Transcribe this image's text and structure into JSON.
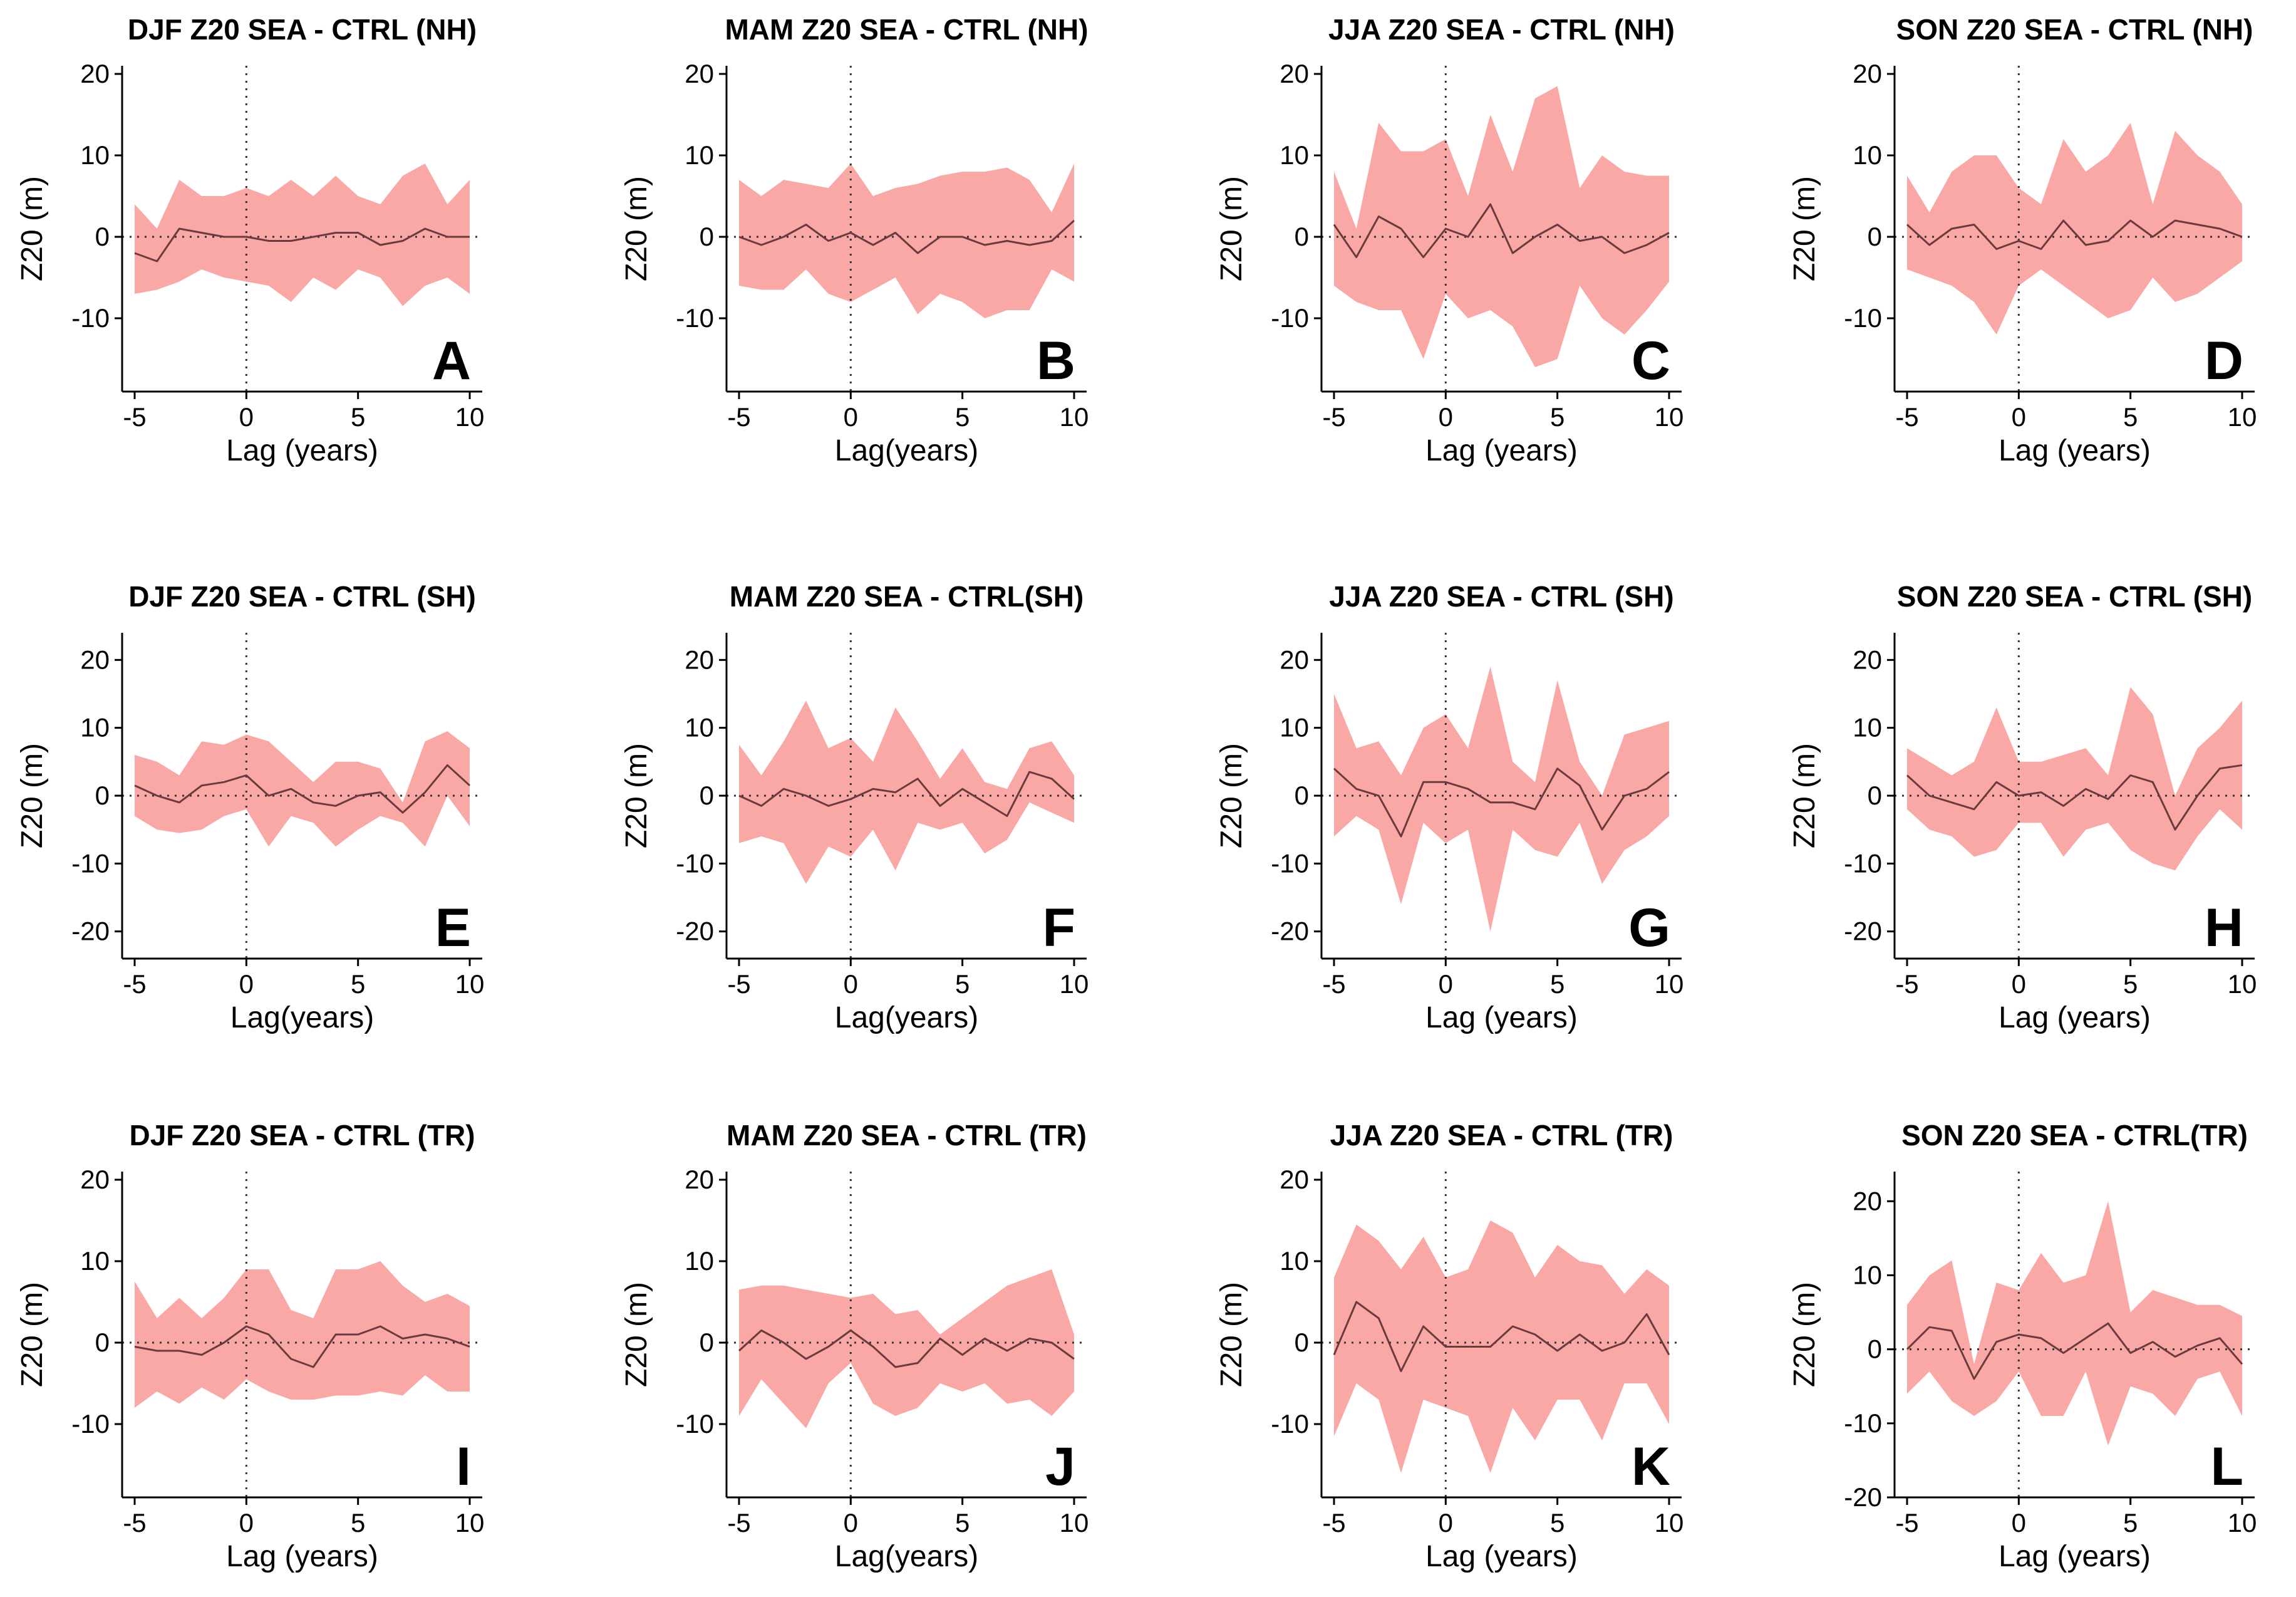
{
  "figure": {
    "description_colors": {
      "band": "#f9a8a5",
      "line": "#6b3a3e",
      "reference": "#333333"
    }
  },
  "chart_data": [
    {
      "type": "area",
      "letter": "A",
      "title": "DJF Z20 SEA - CTRL (NH)",
      "xlabel": "Lag (years)",
      "ylabel": "Z20 (m)",
      "xlim": [
        -5,
        10
      ],
      "ylim": [
        -19,
        21
      ],
      "xticks": [
        -5,
        0,
        5,
        10
      ],
      "yticks": [
        -10,
        0,
        10,
        20
      ],
      "x": [
        -5,
        -4,
        -3,
        -2,
        -1,
        0,
        1,
        2,
        3,
        4,
        5,
        6,
        7,
        8,
        9,
        10
      ],
      "mean": [
        -2,
        -3,
        1,
        0.5,
        0,
        0,
        -0.5,
        -0.5,
        0,
        0.5,
        0.5,
        -1,
        -0.5,
        1,
        0,
        0
      ],
      "upper": [
        4,
        1,
        7,
        5,
        5,
        6,
        5,
        7,
        5,
        7.5,
        5,
        4,
        7.5,
        9,
        4,
        7
      ],
      "lower": [
        -7,
        -6.5,
        -5.5,
        -4,
        -5,
        -5.5,
        -6,
        -8,
        -5,
        -6.5,
        -4,
        -5,
        -8.5,
        -6,
        -5,
        -7
      ]
    },
    {
      "type": "area",
      "letter": "B",
      "title": "MAM Z20 SEA - CTRL (NH)",
      "xlabel": "Lag(years)",
      "ylabel": "Z20 (m)",
      "xlim": [
        -5,
        10
      ],
      "ylim": [
        -19,
        21
      ],
      "xticks": [
        -5,
        0,
        5,
        10
      ],
      "yticks": [
        -10,
        0,
        10,
        20
      ],
      "x": [
        -5,
        -4,
        -3,
        -2,
        -1,
        0,
        1,
        2,
        3,
        4,
        5,
        6,
        7,
        8,
        9,
        10
      ],
      "mean": [
        0,
        -1,
        0,
        1.5,
        -0.5,
        0.5,
        -1,
        0.5,
        -2,
        0,
        0,
        -1,
        -0.5,
        -1,
        -0.5,
        2
      ],
      "upper": [
        7,
        5,
        7,
        6.5,
        6,
        9,
        5,
        6,
        6.5,
        7.5,
        8,
        8,
        8.5,
        7,
        3,
        9
      ],
      "lower": [
        -6,
        -6.5,
        -6.5,
        -4,
        -7,
        -8,
        -6.5,
        -5,
        -9.5,
        -7,
        -8,
        -10,
        -9,
        -9,
        -4,
        -5.5
      ]
    },
    {
      "type": "area",
      "letter": "C",
      "title": "JJA Z20 SEA - CTRL (NH)",
      "xlabel": "Lag (years)",
      "ylabel": "Z20 (m)",
      "xlim": [
        -5,
        10
      ],
      "ylim": [
        -19,
        21
      ],
      "xticks": [
        -5,
        0,
        5,
        10
      ],
      "yticks": [
        -10,
        0,
        10,
        20
      ],
      "x": [
        -5,
        -4,
        -3,
        -2,
        -1,
        0,
        1,
        2,
        3,
        4,
        5,
        6,
        7,
        8,
        9,
        10
      ],
      "mean": [
        1.5,
        -2.5,
        2.5,
        1,
        -2.5,
        1,
        0,
        4,
        -2,
        0,
        1.5,
        -0.5,
        0,
        -2,
        -1,
        0.5
      ],
      "upper": [
        8,
        1,
        14,
        10.5,
        10.5,
        12,
        5,
        15,
        8,
        17,
        18.5,
        6,
        10,
        8,
        7.5,
        7.5
      ],
      "lower": [
        -6,
        -8,
        -9,
        -9,
        -15,
        -7,
        -10,
        -9,
        -11,
        -16,
        -15,
        -6,
        -10,
        -12,
        -9,
        -5.5
      ]
    },
    {
      "type": "area",
      "letter": "D",
      "title": "SON Z20 SEA - CTRL (NH)",
      "xlabel": "Lag (years)",
      "ylabel": "Z20 (m)",
      "xlim": [
        -5,
        10
      ],
      "ylim": [
        -19,
        21
      ],
      "xticks": [
        -5,
        0,
        5,
        10
      ],
      "yticks": [
        -10,
        0,
        10,
        20
      ],
      "x": [
        -5,
        -4,
        -3,
        -2,
        -1,
        0,
        1,
        2,
        3,
        4,
        5,
        6,
        7,
        8,
        9,
        10
      ],
      "mean": [
        1.5,
        -1,
        1,
        1.5,
        -1.5,
        -0.5,
        -1.5,
        2,
        -1,
        -0.5,
        2,
        0,
        2,
        1.5,
        1,
        0
      ],
      "upper": [
        7.5,
        3,
        8,
        10,
        10,
        6,
        4,
        12,
        8,
        10,
        14,
        4,
        13,
        10,
        8,
        4
      ],
      "lower": [
        -4,
        -5,
        -6,
        -8,
        -12,
        -6,
        -4,
        -6,
        -8,
        -10,
        -9,
        -5,
        -8,
        -7,
        -5,
        -3
      ]
    },
    {
      "type": "area",
      "letter": "E",
      "title": "DJF Z20 SEA - CTRL (SH)",
      "xlabel": "Lag(years)",
      "ylabel": "Z20 (m)",
      "xlim": [
        -5,
        10
      ],
      "ylim": [
        -24,
        24
      ],
      "xticks": [
        -5,
        0,
        5,
        10
      ],
      "yticks": [
        -20,
        -10,
        0,
        10,
        20
      ],
      "x": [
        -5,
        -4,
        -3,
        -2,
        -1,
        0,
        1,
        2,
        3,
        4,
        5,
        6,
        7,
        8,
        9,
        10
      ],
      "mean": [
        1.5,
        0,
        -1,
        1.5,
        2,
        3,
        0,
        1,
        -1,
        -1.5,
        0,
        0.5,
        -2.5,
        0.5,
        4.5,
        1.5
      ],
      "upper": [
        6,
        5,
        3,
        8,
        7.5,
        9,
        8,
        5,
        2,
        5,
        5,
        4,
        -1,
        8,
        9.5,
        7
      ],
      "lower": [
        -3,
        -5,
        -5.5,
        -5,
        -3,
        -2,
        -7.5,
        -3,
        -4,
        -7.5,
        -5,
        -3,
        -4,
        -7.5,
        0,
        -4.5
      ]
    },
    {
      "type": "area",
      "letter": "F",
      "title": "MAM Z20 SEA -  CTRL(SH)",
      "xlabel": "Lag(years)",
      "ylabel": "Z20 (m)",
      "xlim": [
        -5,
        10
      ],
      "ylim": [
        -24,
        24
      ],
      "xticks": [
        -5,
        0,
        5,
        10
      ],
      "yticks": [
        -20,
        -10,
        0,
        10,
        20
      ],
      "x": [
        -5,
        -4,
        -3,
        -2,
        -1,
        0,
        1,
        2,
        3,
        4,
        5,
        6,
        7,
        8,
        9,
        10
      ],
      "mean": [
        0,
        -1.5,
        1,
        0,
        -1.5,
        -0.5,
        1,
        0.5,
        2.5,
        -1.5,
        1,
        -1,
        -3,
        3.5,
        2.5,
        -0.5
      ],
      "upper": [
        7.5,
        3,
        8,
        14,
        7,
        8.5,
        5,
        13,
        8,
        2.5,
        7,
        2,
        1,
        7,
        8,
        3
      ],
      "lower": [
        -7,
        -6,
        -7,
        -13,
        -7.5,
        -9,
        -5,
        -11,
        -4,
        -5,
        -4,
        -8.5,
        -6.5,
        -1,
        -2.5,
        -4
      ]
    },
    {
      "type": "area",
      "letter": "G",
      "title": "JJA Z20 SEA - CTRL (SH)",
      "xlabel": "Lag (years)",
      "ylabel": "Z20 (m)",
      "xlim": [
        -5,
        10
      ],
      "ylim": [
        -24,
        24
      ],
      "xticks": [
        -5,
        0,
        5,
        10
      ],
      "yticks": [
        -20,
        -10,
        0,
        10,
        20
      ],
      "x": [
        -5,
        -4,
        -3,
        -2,
        -1,
        0,
        1,
        2,
        3,
        4,
        5,
        6,
        7,
        8,
        9,
        10
      ],
      "mean": [
        4,
        1,
        0,
        -6,
        2,
        2,
        1,
        -1,
        -1,
        -2,
        4,
        1.5,
        -5,
        0,
        1,
        3.5
      ],
      "upper": [
        15,
        7,
        8,
        3,
        10,
        12,
        7,
        19,
        5,
        2,
        17,
        5,
        0,
        9,
        10,
        11
      ],
      "lower": [
        -6,
        -3,
        -5,
        -16,
        -4,
        -7,
        -5,
        -20,
        -5,
        -8,
        -9,
        -4,
        -13,
        -8,
        -6,
        -3
      ]
    },
    {
      "type": "area",
      "letter": "H",
      "title": "SON Z20 SEA - CTRL (SH)",
      "xlabel": "Lag (years)",
      "ylabel": "Z20 (m)",
      "xlim": [
        -5,
        10
      ],
      "ylim": [
        -24,
        24
      ],
      "xticks": [
        -5,
        0,
        5,
        10
      ],
      "yticks": [
        -20,
        -10,
        0,
        10,
        20
      ],
      "x": [
        -5,
        -4,
        -3,
        -2,
        -1,
        0,
        1,
        2,
        3,
        4,
        5,
        6,
        7,
        8,
        9,
        10
      ],
      "mean": [
        3,
        0,
        -1,
        -2,
        2,
        0,
        0.5,
        -1.5,
        1,
        -0.5,
        3,
        2,
        -5,
        0,
        4,
        4.5
      ],
      "upper": [
        7,
        5,
        3,
        5,
        13,
        5,
        5,
        6,
        7,
        3,
        16,
        12,
        0,
        7,
        10,
        14
      ],
      "lower": [
        -2,
        -5,
        -6,
        -9,
        -8,
        -4,
        -4,
        -9,
        -5,
        -4,
        -8,
        -10,
        -11,
        -6,
        -2,
        -5
      ]
    },
    {
      "type": "area",
      "letter": "I",
      "title": "DJF Z20 SEA - CTRL (TR)",
      "xlabel": "Lag (years)",
      "ylabel": "Z20 (m)",
      "xlim": [
        -5,
        10
      ],
      "ylim": [
        -19,
        21
      ],
      "xticks": [
        -5,
        0,
        5,
        10
      ],
      "yticks": [
        -10,
        0,
        10,
        20
      ],
      "x": [
        -5,
        -4,
        -3,
        -2,
        -1,
        0,
        1,
        2,
        3,
        4,
        5,
        6,
        7,
        8,
        9,
        10
      ],
      "mean": [
        -0.5,
        -1,
        -1,
        -1.5,
        0,
        2,
        1,
        -2,
        -3,
        1,
        1,
        2,
        0.5,
        1,
        0.5,
        -0.5
      ],
      "upper": [
        7.5,
        3,
        5.5,
        3,
        5.5,
        9,
        9,
        4,
        3,
        9,
        9,
        10,
        7,
        5,
        6,
        4.5
      ],
      "lower": [
        -8,
        -6,
        -7.5,
        -5.5,
        -7,
        -4.5,
        -6,
        -7,
        -7,
        -6.5,
        -6.5,
        -6,
        -6.5,
        -4,
        -6,
        -6
      ]
    },
    {
      "type": "area",
      "letter": "J",
      "title": "MAM Z20 SEA - CTRL (TR)",
      "xlabel": "Lag(years)",
      "ylabel": "Z20 (m)",
      "xlim": [
        -5,
        10
      ],
      "ylim": [
        -19,
        21
      ],
      "xticks": [
        -5,
        0,
        5,
        10
      ],
      "yticks": [
        -10,
        0,
        10,
        20
      ],
      "x": [
        -5,
        -4,
        -3,
        -2,
        -1,
        0,
        1,
        2,
        3,
        4,
        5,
        6,
        7,
        8,
        9,
        10
      ],
      "mean": [
        -1,
        1.5,
        0,
        -2,
        -0.5,
        1.5,
        -0.5,
        -3,
        -2.5,
        0.5,
        -1.5,
        0.5,
        -1,
        0.5,
        0,
        -2
      ],
      "upper": [
        6.5,
        7,
        7,
        6.5,
        6,
        5.5,
        6,
        3.5,
        4,
        1,
        3,
        5,
        7,
        8,
        9,
        1
      ],
      "lower": [
        -9,
        -4.5,
        -7.5,
        -10.5,
        -5,
        -2.5,
        -7.5,
        -9,
        -8,
        -5,
        -6,
        -5,
        -7.5,
        -7,
        -9,
        -6
      ]
    },
    {
      "type": "area",
      "letter": "K",
      "title": "JJA Z20 SEA - CTRL (TR)",
      "xlabel": "Lag (years)",
      "ylabel": "Z20 (m)",
      "xlim": [
        -5,
        10
      ],
      "ylim": [
        -19,
        21
      ],
      "xticks": [
        -5,
        0,
        5,
        10
      ],
      "yticks": [
        -10,
        0,
        10,
        20
      ],
      "x": [
        -5,
        -4,
        -3,
        -2,
        -1,
        0,
        1,
        2,
        3,
        4,
        5,
        6,
        7,
        8,
        9,
        10
      ],
      "mean": [
        -1.5,
        5,
        3,
        -3.5,
        2,
        -0.5,
        -0.5,
        -0.5,
        2,
        1,
        -1,
        1,
        -1,
        0,
        3.5,
        -1.5
      ],
      "upper": [
        8,
        14.5,
        12.5,
        9,
        13,
        8,
        9,
        15,
        13.5,
        8,
        12,
        10,
        9.5,
        6,
        9,
        7
      ],
      "lower": [
        -11.5,
        -5,
        -7,
        -16,
        -7,
        -8,
        -9,
        -16,
        -8,
        -12,
        -7,
        -7,
        -12,
        -5,
        -5,
        -10
      ]
    },
    {
      "type": "area",
      "letter": "L",
      "title": "SON Z20 SEA - CTRL(TR)",
      "xlabel": "Lag (years)",
      "ylabel": "Z20 (m)",
      "xlim": [
        -5,
        10
      ],
      "ylim": [
        -20,
        24
      ],
      "xticks": [
        -5,
        0,
        5,
        10
      ],
      "yticks": [
        -20,
        -10,
        0,
        10,
        20
      ],
      "x": [
        -5,
        -4,
        -3,
        -2,
        -1,
        0,
        1,
        2,
        3,
        4,
        5,
        6,
        7,
        8,
        9,
        10
      ],
      "mean": [
        0,
        3,
        2.5,
        -4,
        1,
        2,
        1.5,
        -0.5,
        1.5,
        3.5,
        -0.5,
        1,
        -1,
        0.5,
        1.5,
        -2
      ],
      "upper": [
        6,
        10,
        12,
        -2,
        9,
        8,
        13,
        9,
        10,
        20,
        5,
        8,
        7,
        6,
        6,
        4.5
      ],
      "lower": [
        -6,
        -3,
        -7,
        -9,
        -7,
        -3,
        -9,
        -9,
        -3,
        -13,
        -5,
        -6,
        -9,
        -4,
        -3,
        -9
      ]
    }
  ]
}
